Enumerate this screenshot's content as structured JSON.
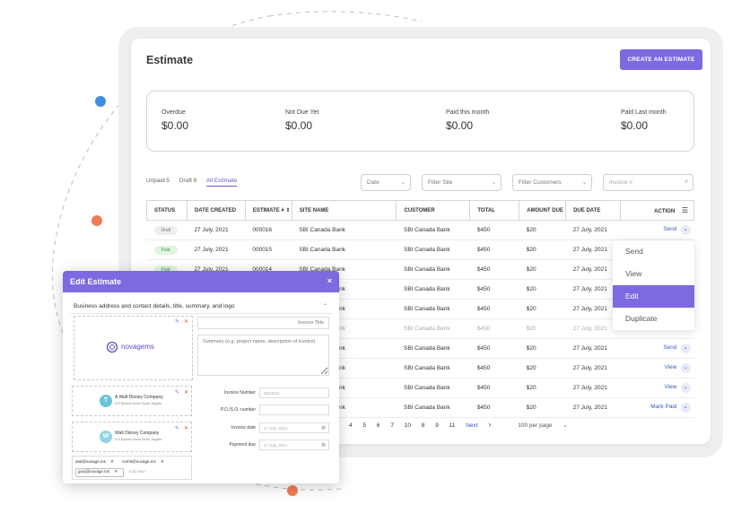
{
  "page": {
    "title": "Estimate",
    "create_button": "CREATE AN ESTIMATE"
  },
  "summary": [
    {
      "label": "Overdue",
      "value": "$0.00"
    },
    {
      "label": "Not Due Yet",
      "value": "$0.00"
    },
    {
      "label": "Paid this month",
      "value": "$0.00"
    },
    {
      "label": "Paid Last month",
      "value": "$0.00"
    }
  ],
  "tabs": [
    {
      "label": "Unpaid 5"
    },
    {
      "label": "Draft 8"
    },
    {
      "label": "All Estimate"
    }
  ],
  "filters": {
    "date": "Date",
    "site": "Filter Site",
    "customers": "Filter Customers",
    "invoice_placeholder": "Invoice #"
  },
  "table": {
    "headers": [
      "STATUS",
      "DATE CREATED",
      "ESTIMATE #",
      "SITE NAME",
      "CUSTOMER",
      "TOTAL",
      "AMOUNT DUE",
      "DUE DATE",
      "ACTION"
    ],
    "rows": [
      {
        "status": "Draft",
        "date": "27 July, 2021",
        "num": "000016",
        "site": "SBI Canada Bank",
        "customer": "SBI Canada Bank",
        "total": "$450",
        "due": "$20",
        "due_date": "27 July, 2021",
        "action": "Send"
      },
      {
        "status": "Paid",
        "date": "27 July, 2021",
        "num": "000015",
        "site": "SBI Canada Bank",
        "customer": "SBI Canada Bank",
        "total": "$450",
        "due": "$20",
        "due_date": "27 July, 2021",
        "action": ""
      },
      {
        "status": "Paid",
        "date": "27 July, 2021",
        "num": "000014",
        "site": "SBI Canada Bank",
        "customer": "SBI Canada Bank",
        "total": "$450",
        "due": "$20",
        "due_date": "27 July, 2021",
        "action": ""
      },
      {
        "status": "",
        "date": "",
        "num": "",
        "site": "SBI Canada Bank",
        "customer": "SBI Canada Bank",
        "total": "$450",
        "due": "$20",
        "due_date": "27 July, 2021",
        "action": ""
      },
      {
        "status": "",
        "date": "",
        "num": "",
        "site": "SBI Canada Bank",
        "customer": "SBI Canada Bank",
        "total": "$450",
        "due": "$20",
        "due_date": "27 July, 2021",
        "action": ""
      },
      {
        "status": "",
        "date": "",
        "num": "",
        "site": "SBI Canada Bank",
        "customer": "SBI Canada Bank",
        "total": "$450",
        "due": "$20",
        "due_date": "27 July, 2021",
        "action": ""
      },
      {
        "status": "",
        "date": "",
        "num": "",
        "site": "SBI Canada Bank",
        "customer": "SBI Canada Bank",
        "total": "$450",
        "due": "$20",
        "due_date": "27 July, 2021",
        "action": "Send"
      },
      {
        "status": "",
        "date": "",
        "num": "",
        "site": "SBI Canada Bank",
        "customer": "SBI Canada Bank",
        "total": "$450",
        "due": "$20",
        "due_date": "27 July, 2021",
        "action": "View"
      },
      {
        "status": "",
        "date": "",
        "num": "",
        "site": "SBI Canada Bank",
        "customer": "SBI Canada Bank",
        "total": "$450",
        "due": "$20",
        "due_date": "27 July, 2021",
        "action": "View"
      },
      {
        "status": "",
        "date": "",
        "num": "",
        "site": "SBI Canada Bank",
        "customer": "SBI Canada Bank",
        "total": "$450",
        "due": "$20",
        "due_date": "27 July, 2021",
        "action": "Mark Paid"
      }
    ]
  },
  "pagination": {
    "pages": [
      "4",
      "5",
      "6",
      "7",
      "10",
      "8",
      "9",
      "11"
    ],
    "next": "Next",
    "per_page": "100 per page"
  },
  "action_menu": {
    "items": [
      "Send",
      "View",
      "Edit",
      "Duplicate"
    ],
    "selected": "Edit"
  },
  "modal": {
    "title": "Edit Estimate",
    "section_title": "Business address and contact details, title, summary, and logo",
    "logo_text": "novagems",
    "invoice_title_placeholder": "Invoice Title",
    "summary_placeholder": "Summary (e.g. project name, description of invoice)",
    "addresses": [
      {
        "initial": "T",
        "name": "A Walt Disney Company",
        "line": "570 Bytham Street South Jingalta"
      },
      {
        "initial": "W",
        "name": "Walt Disney Company",
        "line": "570 Bytham Street South Jingalta"
      }
    ],
    "fields": [
      {
        "label": "Invoice Number",
        "value": "0504534"
      },
      {
        "label": "P.O./S.O. number",
        "value": ""
      },
      {
        "label": "Invoice date",
        "value": "27 July, 2021"
      },
      {
        "label": "Payment due",
        "value": "27 July, 2021"
      }
    ],
    "emails": [
      "atul@novage.ms",
      "mohit@novage.ms",
      "gunj@novage.ms"
    ],
    "add_new": "Add New"
  },
  "colors": {
    "accent": "#7b6ae0",
    "deco_blue": "#3f8fe0",
    "deco_orange": "#f07c52"
  }
}
